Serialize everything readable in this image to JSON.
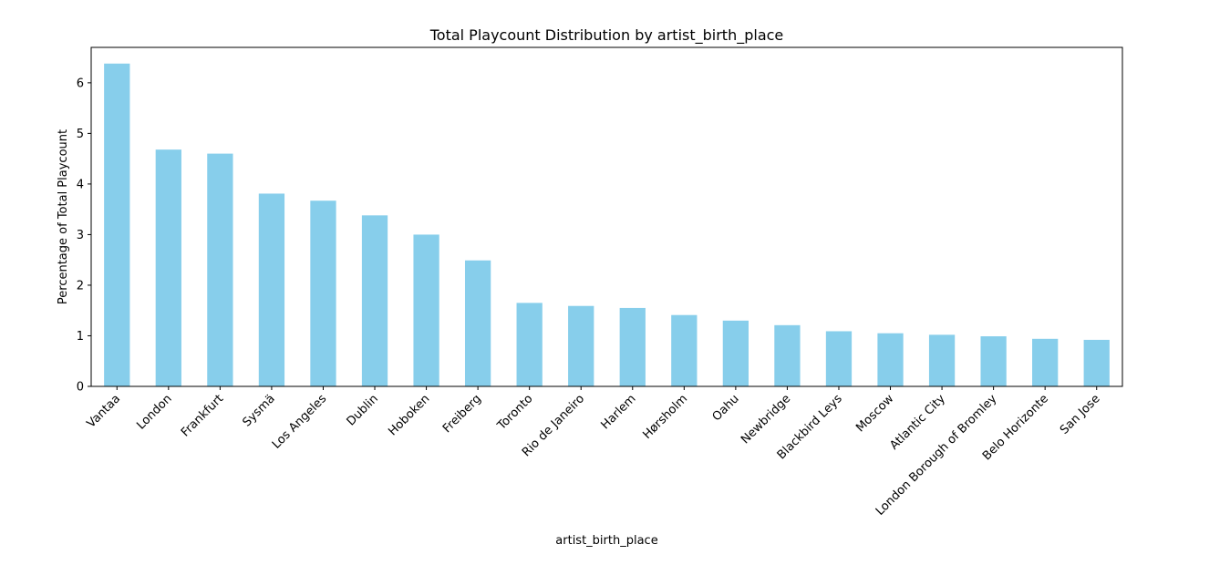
{
  "chart_data": {
    "type": "bar",
    "title": "Total Playcount Distribution by artist_birth_place",
    "xlabel": "artist_birth_place",
    "ylabel": "Percentage of Total Playcount",
    "categories": [
      "Vantaa",
      "London",
      "Frankfurt",
      "Sysmä",
      "Los Angeles",
      "Dublin",
      "Hoboken",
      "Freiberg",
      "Toronto",
      "Rio de Janeiro",
      "Harlem",
      "Hørsholm",
      "Oahu",
      "Newbridge",
      "Blackbird Leys",
      "Moscow",
      "Atlantic City",
      "London Borough of Bromley",
      "Belo Horizonte",
      "San Jose"
    ],
    "values": [
      6.38,
      4.68,
      4.6,
      3.81,
      3.67,
      3.38,
      3.0,
      2.49,
      1.65,
      1.59,
      1.55,
      1.41,
      1.3,
      1.21,
      1.09,
      1.05,
      1.02,
      0.99,
      0.94,
      0.92
    ],
    "ylim": [
      0,
      6.7
    ],
    "yticks": [
      0,
      1,
      2,
      3,
      4,
      5,
      6
    ],
    "grid": false,
    "bar_color": "#87ceeb",
    "legend": null
  }
}
